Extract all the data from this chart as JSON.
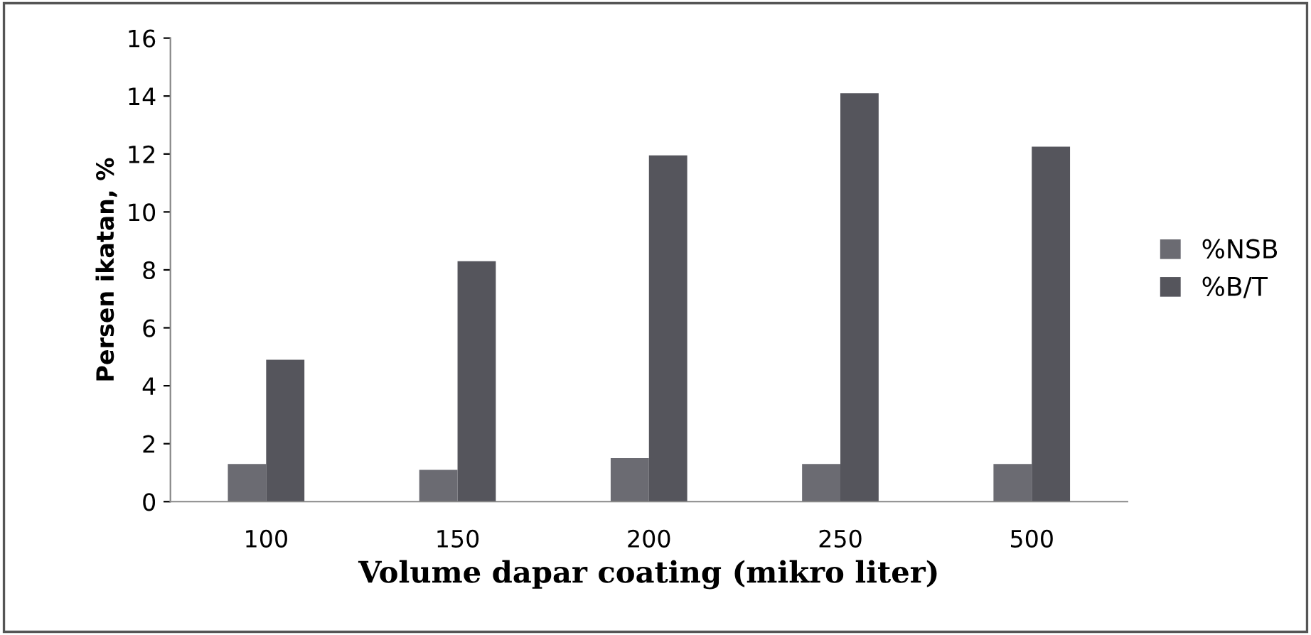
{
  "chart_data": {
    "type": "bar",
    "xlabel": "Volume dapar coating (mikro liter)",
    "ylabel": "Persen ikatan, %",
    "categories": [
      "100",
      "150",
      "200",
      "250",
      "500"
    ],
    "series": [
      {
        "name": "%NSB",
        "color": "#6b6b72",
        "values": [
          1.3,
          1.1,
          1.5,
          1.3,
          1.3
        ]
      },
      {
        "name": "%B/T",
        "color": "#55555c",
        "values": [
          4.9,
          8.3,
          11.95,
          14.1,
          12.25
        ]
      }
    ],
    "ylim": [
      0,
      16
    ],
    "yticks": [
      0,
      2,
      4,
      6,
      8,
      10,
      12,
      14,
      16
    ],
    "grid": false,
    "legend": "right"
  }
}
